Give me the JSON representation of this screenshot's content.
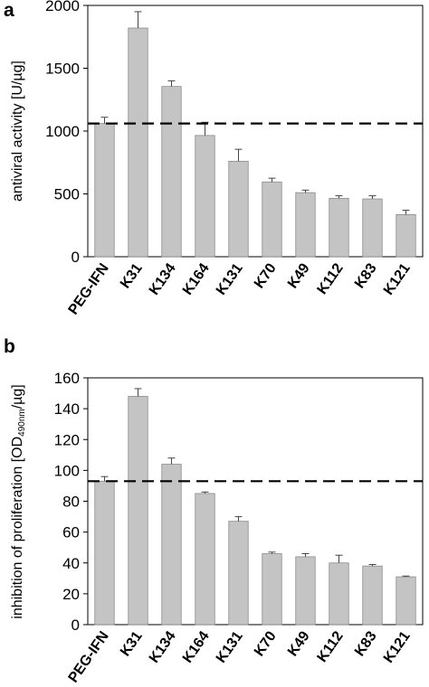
{
  "chart_data": [
    {
      "type": "bar",
      "panel_label": "a",
      "ylabel": "antiviral activity [U/µg]",
      "ylim": [
        0,
        2000
      ],
      "yticks": [
        0,
        500,
        1000,
        1500,
        2000
      ],
      "categories": [
        "PEG-IFN",
        "K31",
        "K134",
        "K164",
        "K131",
        "K70",
        "K49",
        "K112",
        "K83",
        "K121"
      ],
      "values": [
        1060,
        1820,
        1355,
        965,
        760,
        595,
        510,
        465,
        460,
        335
      ],
      "errors": [
        50,
        130,
        45,
        105,
        95,
        30,
        20,
        20,
        25,
        35
      ],
      "reference_line": 1060,
      "bar_color": "#c4c4c4",
      "grid": false
    },
    {
      "type": "bar",
      "panel_label": "b",
      "ylabel_main": "inhibition of proliferation [OD",
      "ylabel_sub": "490nm",
      "ylabel_end": "/µg]",
      "ylim": [
        0,
        160
      ],
      "yticks": [
        0,
        20,
        40,
        60,
        80,
        100,
        120,
        140,
        160
      ],
      "categories": [
        "PEG-IFN",
        "K31",
        "K134",
        "K164",
        "K131",
        "K70",
        "K49",
        "K112",
        "K83",
        "K121"
      ],
      "values": [
        93,
        148,
        104,
        85,
        67,
        46,
        44,
        40,
        38,
        31
      ],
      "errors": [
        3,
        5,
        4,
        1,
        3,
        1,
        2,
        5,
        1,
        0.5
      ],
      "reference_line": 93,
      "bar_color": "#c4c4c4",
      "grid": false
    }
  ]
}
